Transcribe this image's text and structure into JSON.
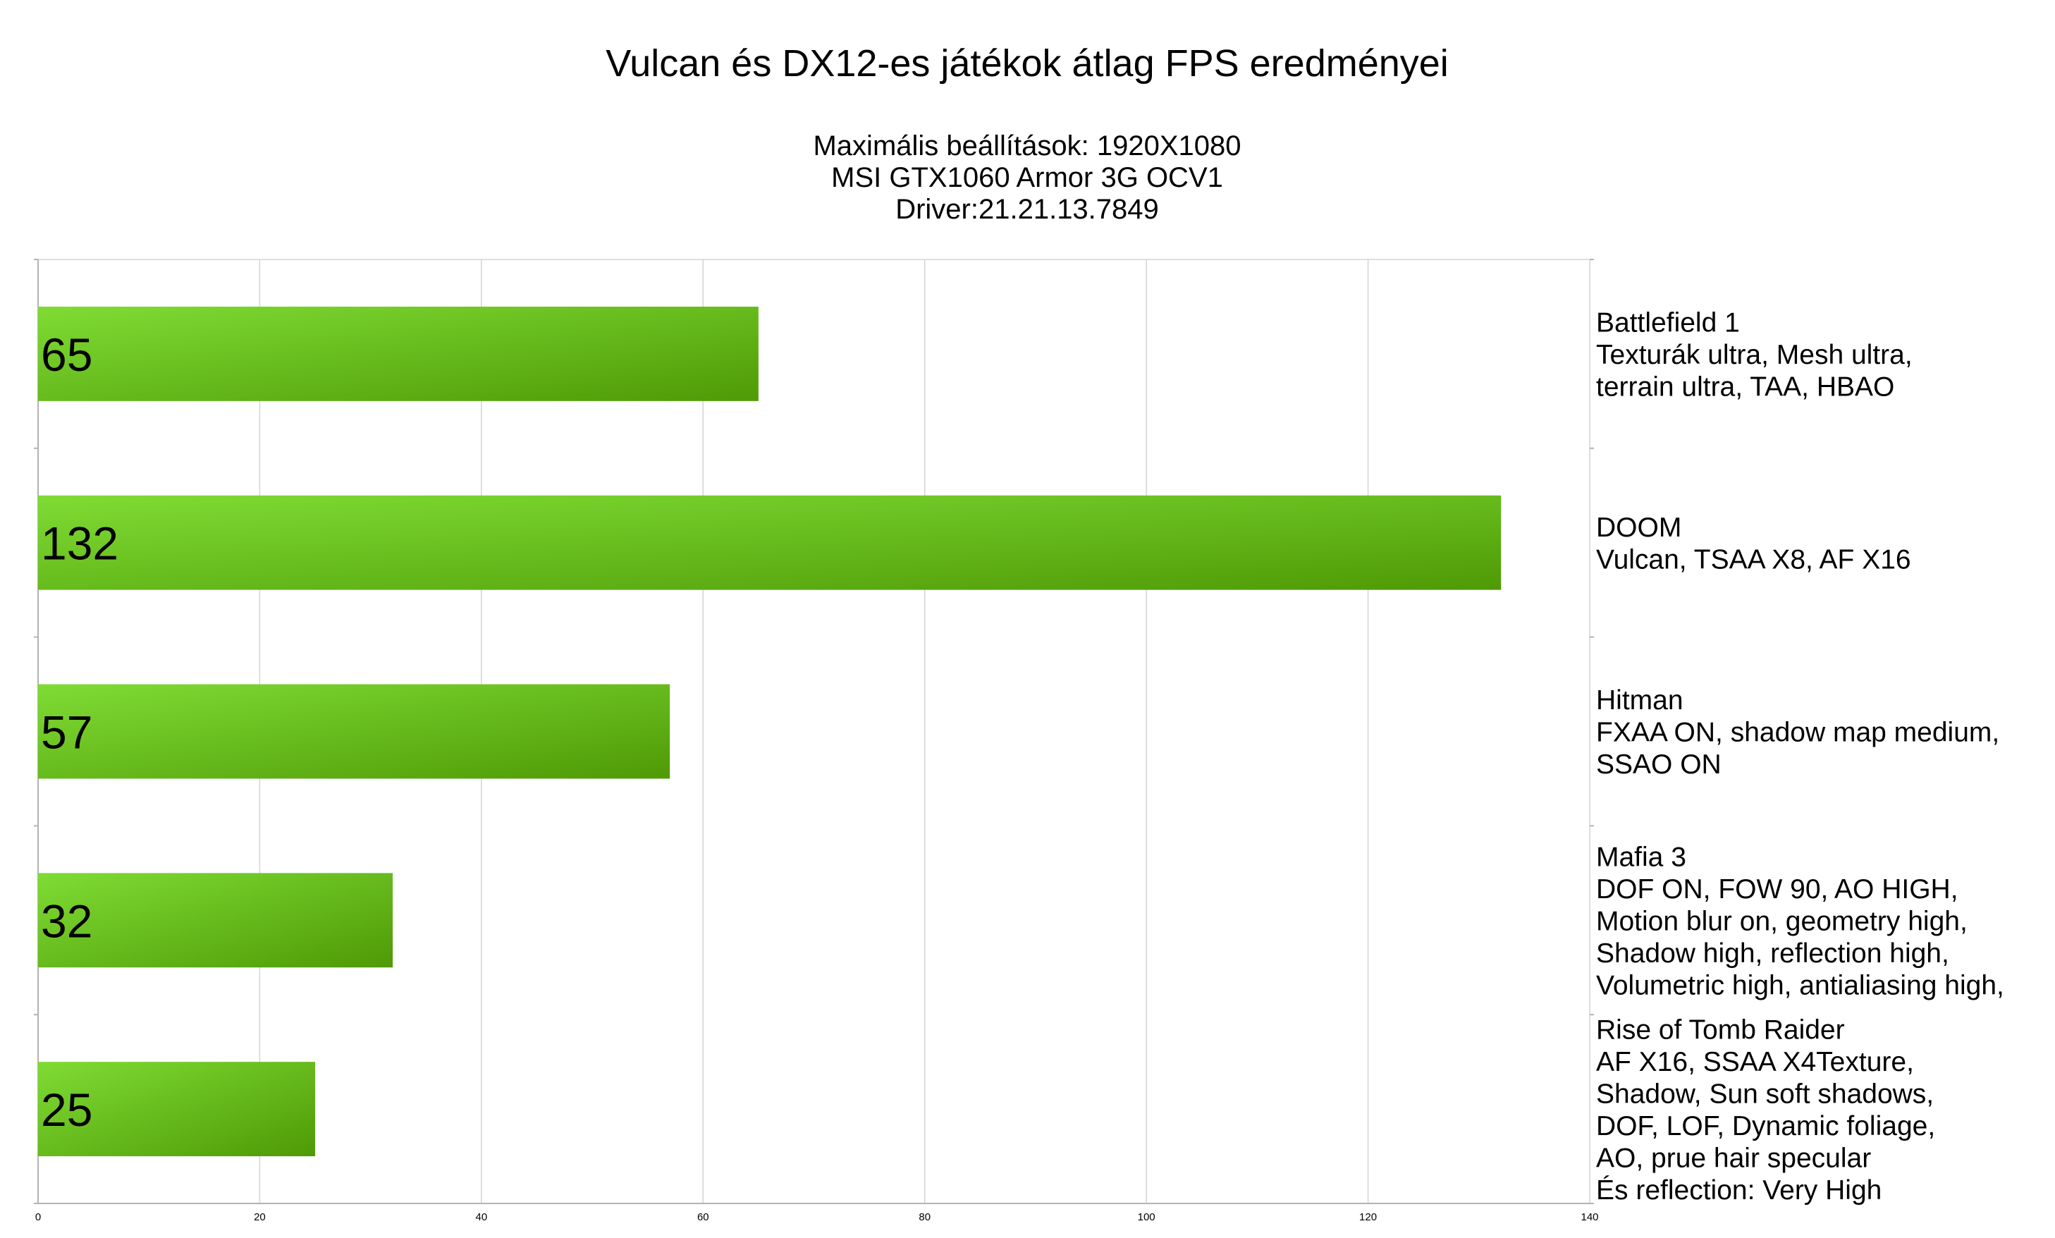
{
  "chart_data": {
    "type": "bar",
    "orientation": "horizontal",
    "title": "Vulcan és DX12-es játékok átlag FPS eredményei",
    "subtitle_lines": [
      "Maximális beállítások: 1920X1080",
      "MSI GTX1060 Armor 3G OCV1",
      "Driver:21.21.13.7849"
    ],
    "categories": [
      [
        "Battlefield 1",
        "Texturák ultra, Mesh ultra,",
        "terrain ultra, TAA, HBAO"
      ],
      [
        "DOOM",
        "Vulcan, TSAA X8, AF X16"
      ],
      [
        "Hitman",
        "FXAA ON, shadow map medium,",
        "SSAO ON"
      ],
      [
        "Mafia 3",
        "DOF ON, FOW 90, AO HIGH,",
        "Motion blur on, geometry high,",
        "Shadow high, reflection high,",
        "Volumetric high, antialiasing high,"
      ],
      [
        "Rise of Tomb Raider",
        "AF X16, SSAA X4Texture,",
        "Shadow, Sun soft shadows,",
        "DOF, LOF, Dynamic foliage,",
        "AO, prue hair specular",
        "És reflection: Very High"
      ]
    ],
    "values": [
      65,
      132,
      57,
      32,
      25
    ],
    "value_labels": [
      "65",
      "132",
      "57",
      "32",
      "25"
    ],
    "xlim": [
      0,
      140
    ],
    "xticks": [
      "0",
      "20",
      "40",
      "60",
      "80",
      "100",
      "120",
      "140"
    ],
    "xlabel": "",
    "ylabel": "",
    "grid": true,
    "legend": "none",
    "category_labels_side": "right",
    "colors": {
      "bar_light": "#7fdc34",
      "bar_dark": "#4f9a06",
      "grid": "#d4d4d4",
      "axis": "#b3b3b3",
      "text": "#000000",
      "background": "#ffffff"
    }
  }
}
